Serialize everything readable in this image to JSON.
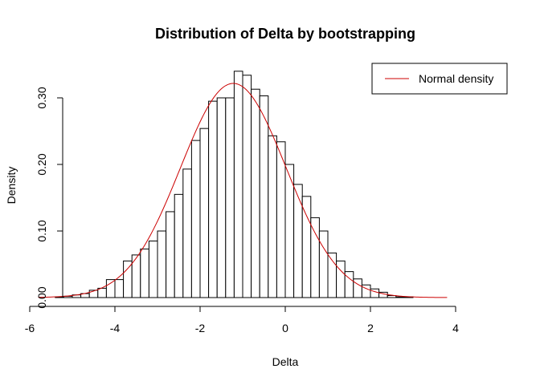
{
  "chart_data": {
    "type": "bar",
    "subtype": "histogram",
    "title": "Distribution of Delta by bootstrapping",
    "xlabel": "Delta",
    "ylabel": "Density",
    "xlim": [
      -6,
      4
    ],
    "ylim": [
      0,
      0.35
    ],
    "x_ticks": [
      -6,
      -4,
      -2,
      0,
      2,
      4
    ],
    "x_tick_labels": [
      "-6",
      "-4",
      "-2",
      "0",
      "2",
      "4"
    ],
    "y_ticks": [
      0,
      0.1,
      0.2,
      0.3
    ],
    "y_tick_labels": [
      "0.00",
      "0.10",
      "0.20",
      "0.30"
    ],
    "bin_width": 0.2,
    "bins_start": -5.4,
    "values": [
      0.001,
      0.002,
      0.004,
      0.006,
      0.011,
      0.014,
      0.027,
      0.027,
      0.055,
      0.064,
      0.073,
      0.085,
      0.1,
      0.129,
      0.155,
      0.193,
      0.236,
      0.254,
      0.295,
      0.3,
      0.3,
      0.34,
      0.334,
      0.313,
      0.303,
      0.243,
      0.234,
      0.2,
      0.17,
      0.152,
      0.12,
      0.1,
      0.067,
      0.055,
      0.039,
      0.028,
      0.019,
      0.013,
      0.008,
      0.003,
      0.001,
      0.001
    ],
    "grid": false,
    "bar_fill": "#ffffff",
    "bar_stroke": "#000000",
    "series": [
      {
        "name": "Normal density",
        "type": "line",
        "color": "#cc0000",
        "mean": -1.22,
        "sd": 1.24,
        "x_range": [
          -5.8,
          3.8
        ]
      }
    ],
    "legend": {
      "position": "top-right",
      "entries": [
        "Normal density"
      ]
    }
  }
}
